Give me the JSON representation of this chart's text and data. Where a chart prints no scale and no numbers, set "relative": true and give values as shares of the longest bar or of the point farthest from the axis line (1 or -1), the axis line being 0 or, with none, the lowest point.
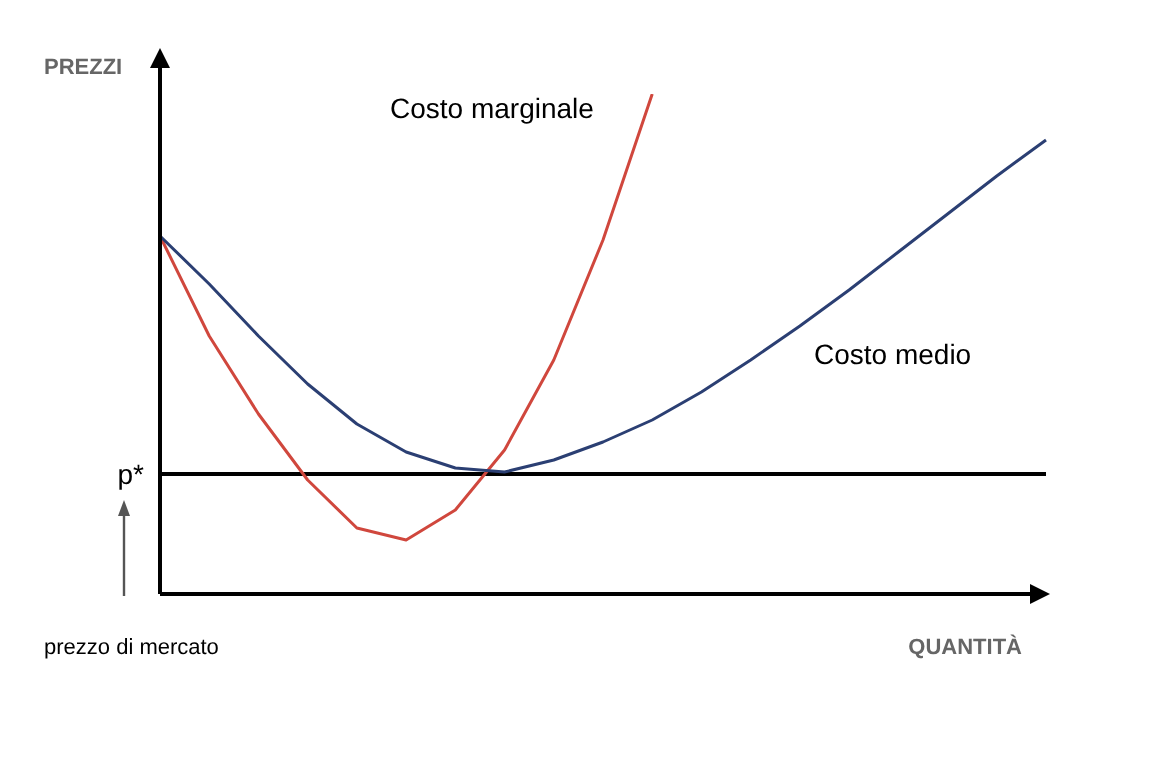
{
  "chart_data": {
    "type": "line",
    "relative": true,
    "ylabel": "PREZZI",
    "xlabel": "QUANTITÀ",
    "legend": false,
    "grid": false,
    "marker": "none",
    "line_style": "solid",
    "categories": [
      null,
      null,
      null,
      null,
      null,
      null,
      null,
      null,
      null,
      null,
      null,
      null,
      null,
      null,
      null,
      null,
      null,
      null,
      null
    ],
    "series": [
      {
        "name": "Costo marginale",
        "color": "#d0473d",
        "values": [
          0.716,
          0.516,
          0.36,
          0.228,
          0.132,
          0.108,
          0.168,
          0.288,
          0.468,
          0.708,
          1,
          null,
          null,
          null,
          null,
          null,
          null,
          null,
          null
        ]
      },
      {
        "name": "Costo medio",
        "color": "#2b3f73",
        "values": [
          0.716,
          0.62,
          0.516,
          0.42,
          0.34,
          0.284,
          0.252,
          0.244,
          0.268,
          0.304,
          0.348,
          0.404,
          0.468,
          0.536,
          0.608,
          0.684,
          0.76,
          0.836,
          0.908
        ]
      }
    ],
    "ref_lines": [
      {
        "axis": "y",
        "value": 0.24,
        "label": "p*",
        "color": "#000000"
      }
    ],
    "annotations": [
      "prezzo di mercato"
    ]
  }
}
